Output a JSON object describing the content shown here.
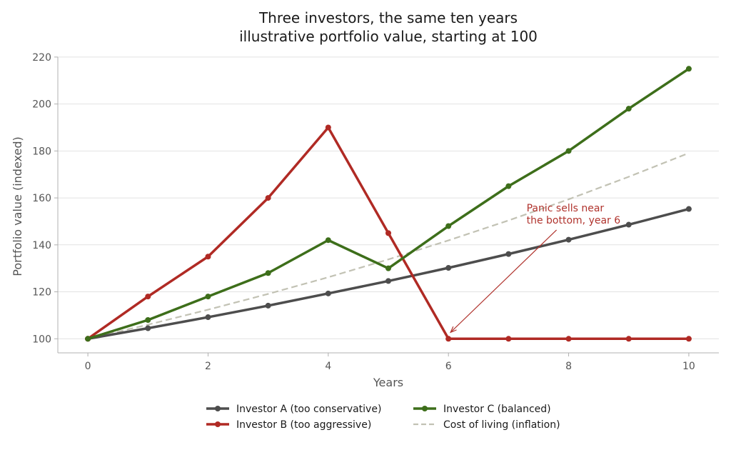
{
  "chart_data": {
    "type": "line",
    "title": "Three investors, the same ten years",
    "subtitle": "illustrative portfolio value, starting at 100",
    "xlabel": "Years",
    "ylabel": "Portfolio value (indexed)",
    "xlim": [
      -0.5,
      10.5
    ],
    "ylim": [
      94,
      223
    ],
    "xticks": [
      0,
      2,
      4,
      6,
      8,
      10
    ],
    "yticks": [
      100,
      120,
      140,
      160,
      180,
      200,
      220
    ],
    "grid": "horizontal",
    "legend_placement": "bottom-center",
    "x": [
      0,
      1,
      2,
      3,
      4,
      5,
      6,
      7,
      8,
      9,
      10
    ],
    "series": [
      {
        "name": "Investor A (too conservative)",
        "color": "#4d4d4d",
        "style": "solid-markers",
        "values": [
          100,
          104.5,
          109.2,
          114.1,
          119.3,
          124.6,
          130.2,
          136.1,
          142.2,
          148.6,
          155.3
        ]
      },
      {
        "name": "Investor B (too aggressive)",
        "color": "#b02a24",
        "style": "solid-markers",
        "values": [
          100,
          118,
          135,
          160,
          190,
          145,
          100,
          100,
          100,
          100,
          100
        ]
      },
      {
        "name": "Investor C (balanced)",
        "color": "#3d6e1a",
        "style": "solid-markers",
        "values": [
          100,
          108,
          118,
          128,
          142,
          130,
          148,
          165,
          180,
          198,
          215
        ]
      },
      {
        "name": "Cost of living (inflation)",
        "color": "#c2c2b4",
        "style": "dashed",
        "values": [
          100,
          106,
          112.4,
          119.1,
          126.2,
          133.8,
          141.9,
          150.4,
          159.4,
          169,
          179.1
        ]
      }
    ],
    "annotations": [
      {
        "text_lines": [
          "Panic sells near",
          "the bottom, year 6"
        ],
        "color": "#b0332d",
        "point": [
          6,
          100
        ],
        "text_anchor": [
          7.3,
          150
        ]
      }
    ]
  }
}
